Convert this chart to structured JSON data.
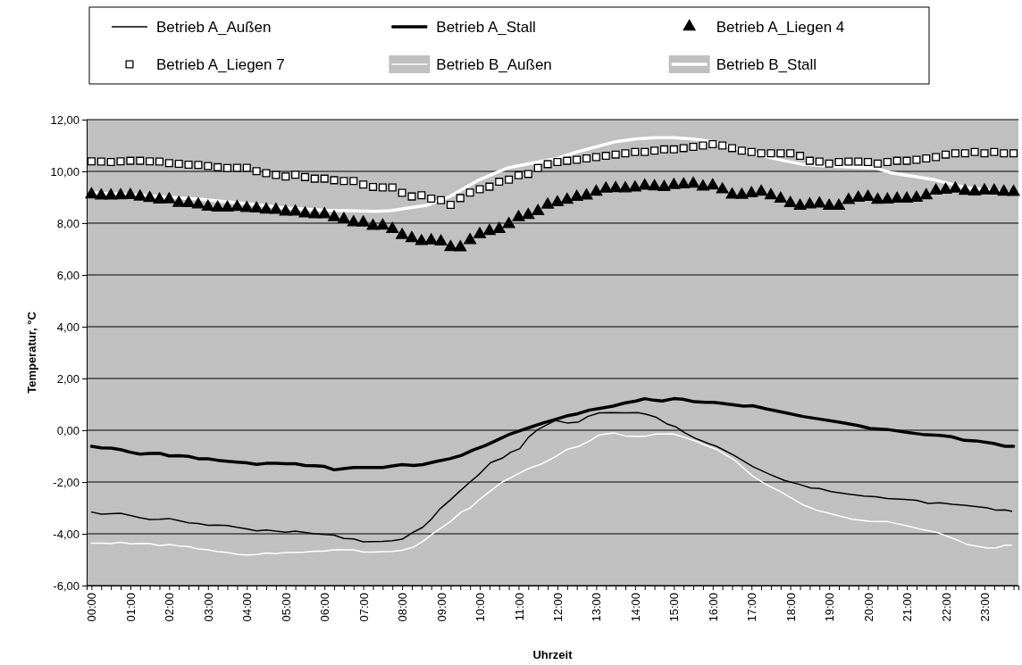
{
  "chart_data": {
    "type": "line",
    "xlabel": "Uhrzeit",
    "ylabel": "Temperatur, °C",
    "legend": "top",
    "grid": "y",
    "xlim": [
      -0.125,
      23.875
    ],
    "ylim": [
      -6,
      12
    ],
    "yticks": [
      {
        "value": -6,
        "label": "-6,00"
      },
      {
        "value": -4,
        "label": "-4,00"
      },
      {
        "value": -2,
        "label": "-2,00"
      },
      {
        "value": 0,
        "label": "0,00"
      },
      {
        "value": 2,
        "label": "2,00"
      },
      {
        "value": 4,
        "label": "4,00"
      },
      {
        "value": 6,
        "label": "6,00"
      },
      {
        "value": 8,
        "label": "8,00"
      },
      {
        "value": 10,
        "label": "10,00"
      },
      {
        "value": 12,
        "label": "12,00"
      }
    ],
    "xticks": [
      {
        "value": 0,
        "label": "00:00"
      },
      {
        "value": 0.25,
        "label": null
      },
      {
        "value": 0.5,
        "label": null
      },
      {
        "value": 0.75,
        "label": null
      },
      {
        "value": 1,
        "label": "01:00"
      },
      {
        "value": 1.25,
        "label": null
      },
      {
        "value": 1.5,
        "label": null
      },
      {
        "value": 1.75,
        "label": null
      },
      {
        "value": 2,
        "label": "02:00"
      },
      {
        "value": 2.25,
        "label": null
      },
      {
        "value": 2.5,
        "label": null
      },
      {
        "value": 2.75,
        "label": null
      },
      {
        "value": 3,
        "label": "03:00"
      },
      {
        "value": 3.25,
        "label": null
      },
      {
        "value": 3.5,
        "label": null
      },
      {
        "value": 3.75,
        "label": null
      },
      {
        "value": 4,
        "label": "04:00"
      },
      {
        "value": 4.25,
        "label": null
      },
      {
        "value": 4.5,
        "label": null
      },
      {
        "value": 4.75,
        "label": null
      },
      {
        "value": 5,
        "label": "05:00"
      },
      {
        "value": 5.25,
        "label": null
      },
      {
        "value": 5.5,
        "label": null
      },
      {
        "value": 5.75,
        "label": null
      },
      {
        "value": 6,
        "label": "06:00"
      },
      {
        "value": 6.25,
        "label": null
      },
      {
        "value": 6.5,
        "label": null
      },
      {
        "value": 6.75,
        "label": null
      },
      {
        "value": 7,
        "label": "07:00"
      },
      {
        "value": 7.25,
        "label": null
      },
      {
        "value": 7.5,
        "label": null
      },
      {
        "value": 7.75,
        "label": null
      },
      {
        "value": 8,
        "label": "08:00"
      },
      {
        "value": 8.25,
        "label": null
      },
      {
        "value": 8.5,
        "label": null
      },
      {
        "value": 8.75,
        "label": null
      },
      {
        "value": 9,
        "label": "09:00"
      },
      {
        "value": 9.25,
        "label": null
      },
      {
        "value": 9.5,
        "label": null
      },
      {
        "value": 9.75,
        "label": null
      },
      {
        "value": 10,
        "label": "10:00"
      },
      {
        "value": 10.25,
        "label": null
      },
      {
        "value": 10.5,
        "label": null
      },
      {
        "value": 10.75,
        "label": null
      },
      {
        "value": 11,
        "label": "11:00"
      },
      {
        "value": 11.25,
        "label": null
      },
      {
        "value": 11.5,
        "label": null
      },
      {
        "value": 11.75,
        "label": null
      },
      {
        "value": 12,
        "label": "12:00"
      },
      {
        "value": 12.25,
        "label": null
      },
      {
        "value": 12.5,
        "label": null
      },
      {
        "value": 12.75,
        "label": null
      },
      {
        "value": 13,
        "label": "13:00"
      },
      {
        "value": 13.25,
        "label": null
      },
      {
        "value": 13.5,
        "label": null
      },
      {
        "value": 13.75,
        "label": null
      },
      {
        "value": 14,
        "label": "14:00"
      },
      {
        "value": 14.25,
        "label": null
      },
      {
        "value": 14.5,
        "label": null
      },
      {
        "value": 14.75,
        "label": null
      },
      {
        "value": 15,
        "label": "15:00"
      },
      {
        "value": 15.25,
        "label": null
      },
      {
        "value": 15.5,
        "label": null
      },
      {
        "value": 15.75,
        "label": null
      },
      {
        "value": 16,
        "label": "16:00"
      },
      {
        "value": 16.25,
        "label": null
      },
      {
        "value": 16.5,
        "label": null
      },
      {
        "value": 16.75,
        "label": null
      },
      {
        "value": 17,
        "label": "17:00"
      },
      {
        "value": 17.25,
        "label": null
      },
      {
        "value": 17.5,
        "label": null
      },
      {
        "value": 17.75,
        "label": null
      },
      {
        "value": 18,
        "label": "18:00"
      },
      {
        "value": 18.25,
        "label": null
      },
      {
        "value": 18.5,
        "label": null
      },
      {
        "value": 18.75,
        "label": null
      },
      {
        "value": 19,
        "label": "19:00"
      },
      {
        "value": 19.25,
        "label": null
      },
      {
        "value": 19.5,
        "label": null
      },
      {
        "value": 19.75,
        "label": null
      },
      {
        "value": 20,
        "label": "20:00"
      },
      {
        "value": 20.25,
        "label": null
      },
      {
        "value": 20.5,
        "label": null
      },
      {
        "value": 20.75,
        "label": null
      },
      {
        "value": 21,
        "label": "21:00"
      },
      {
        "value": 21.25,
        "label": null
      },
      {
        "value": 21.5,
        "label": null
      },
      {
        "value": 21.75,
        "label": null
      },
      {
        "value": 22,
        "label": "22:00"
      },
      {
        "value": 22.25,
        "label": null
      },
      {
        "value": 22.5,
        "label": null
      },
      {
        "value": 22.75,
        "label": null
      },
      {
        "value": 23,
        "label": "23:00"
      },
      {
        "value": 23.25,
        "label": null
      },
      {
        "value": 23.5,
        "label": null
      },
      {
        "value": 23.75,
        "label": null
      }
    ],
    "x": [
      0,
      0.25,
      0.5,
      0.75,
      1,
      1.25,
      1.5,
      1.75,
      2,
      2.25,
      2.5,
      2.75,
      3,
      3.25,
      3.5,
      3.75,
      4,
      4.25,
      4.5,
      4.75,
      5,
      5.25,
      5.5,
      5.75,
      6,
      6.25,
      6.5,
      6.75,
      7,
      7.25,
      7.5,
      7.75,
      8,
      8.25,
      8.5,
      8.75,
      9,
      9.25,
      9.5,
      9.75,
      10,
      10.25,
      10.5,
      10.75,
      11,
      11.25,
      11.5,
      11.75,
      12,
      12.25,
      12.5,
      12.75,
      13,
      13.25,
      13.5,
      13.75,
      14,
      14.25,
      14.5,
      14.75,
      15,
      15.25,
      15.5,
      15.75,
      16,
      16.25,
      16.5,
      16.75,
      17,
      17.25,
      17.5,
      17.75,
      18,
      18.25,
      18.5,
      18.75,
      19,
      19.25,
      19.5,
      19.75,
      20,
      20.25,
      20.5,
      20.75,
      21,
      21.25,
      21.5,
      21.75,
      22,
      22.25,
      22.5,
      22.75,
      23,
      23.25,
      23.5,
      23.75
    ],
    "series": [
      {
        "name": "Betrieb A_Außen",
        "color": "#000000",
        "line_style": "solid",
        "x": [
          0,
          0.25,
          0.5,
          0.75,
          1,
          1.25,
          1.5,
          1.75,
          2,
          2.25,
          2.5,
          2.75,
          3,
          3.25,
          3.5,
          3.75,
          4,
          4.25,
          4.5,
          4.75,
          5,
          5.25,
          5.5,
          5.75,
          6,
          6.25,
          6.5,
          6.75,
          7,
          7.25,
          7.5,
          7.75,
          8,
          8.3,
          8.53,
          8.75,
          8.98,
          9.23,
          9.45,
          9.75,
          9.98,
          10.28,
          10.58,
          10.8,
          11.03,
          11.25,
          11.48,
          11.73,
          11.95,
          12.25,
          12.55,
          12.78,
          13.08,
          13.38,
          13.75,
          14.08,
          14.3,
          14.53,
          14.83,
          15.05,
          15.28,
          15.58,
          15.88,
          16.1,
          16.55,
          17.03,
          17.48,
          17.85,
          18.23,
          18.53,
          18.75,
          19.05,
          19.45,
          19.9,
          20.2,
          20.5,
          20.95,
          21.25,
          21.55,
          21.85,
          22.18,
          22.48,
          22.78,
          23.08,
          23.3,
          23.53,
          23.7
        ],
        "values": [
          -3.16,
          -3.24,
          -3.22,
          -3.21,
          -3.29,
          -3.38,
          -3.45,
          -3.44,
          -3.41,
          -3.49,
          -3.58,
          -3.6,
          -3.67,
          -3.66,
          -3.68,
          -3.75,
          -3.81,
          -3.89,
          -3.85,
          -3.9,
          -3.94,
          -3.9,
          -3.95,
          -4.0,
          -4.03,
          -4.05,
          -4.18,
          -4.2,
          -4.31,
          -4.3,
          -4.29,
          -4.27,
          -4.21,
          -3.93,
          -3.75,
          -3.44,
          -3.03,
          -2.71,
          -2.4,
          -2.0,
          -1.71,
          -1.25,
          -1.08,
          -0.85,
          -0.71,
          -0.28,
          0.01,
          0.21,
          0.38,
          0.28,
          0.32,
          0.53,
          0.67,
          0.68,
          0.67,
          0.68,
          0.61,
          0.51,
          0.24,
          0.13,
          -0.1,
          -0.33,
          -0.51,
          -0.62,
          -0.97,
          -1.4,
          -1.71,
          -1.94,
          -2.09,
          -2.23,
          -2.25,
          -2.37,
          -2.46,
          -2.54,
          -2.57,
          -2.64,
          -2.67,
          -2.71,
          -2.83,
          -2.8,
          -2.86,
          -2.9,
          -2.95,
          -3.0,
          -3.09,
          -3.08,
          -3.13
        ]
      },
      {
        "name": "Betrieb A_Stall",
        "color": "#000000",
        "line_style": "solid",
        "x": [
          0,
          0.25,
          0.5,
          0.75,
          1,
          1.25,
          1.5,
          1.75,
          2,
          2.25,
          2.5,
          2.75,
          3,
          3.25,
          3.5,
          3.75,
          4,
          4.25,
          4.5,
          4.75,
          5,
          5.25,
          5.5,
          5.75,
          6,
          6.25,
          6.5,
          6.75,
          7,
          7.25,
          7.5,
          7.75,
          8,
          8.3,
          8.53,
          8.9,
          9.23,
          9.53,
          9.83,
          10.13,
          10.43,
          10.73,
          11.03,
          11.33,
          11.63,
          11.93,
          12.23,
          12.53,
          12.83,
          13.13,
          13.43,
          13.73,
          14.03,
          14.25,
          14.48,
          14.7,
          15,
          15.23,
          15.53,
          15.83,
          16.03,
          16.4,
          16.8,
          17.03,
          17.4,
          17.8,
          18.33,
          18.85,
          19.3,
          19.75,
          20.05,
          20.5,
          20.95,
          21.4,
          21.85,
          22.15,
          22.48,
          22.78,
          23.23,
          23.53,
          23.75
        ],
        "values": [
          -0.62,
          -0.68,
          -0.69,
          -0.75,
          -0.85,
          -0.92,
          -0.9,
          -0.89,
          -0.99,
          -0.98,
          -1.01,
          -1.1,
          -1.1,
          -1.16,
          -1.2,
          -1.23,
          -1.26,
          -1.32,
          -1.28,
          -1.28,
          -1.29,
          -1.29,
          -1.36,
          -1.37,
          -1.4,
          -1.53,
          -1.48,
          -1.44,
          -1.44,
          -1.44,
          -1.44,
          -1.38,
          -1.33,
          -1.36,
          -1.33,
          -1.2,
          -1.1,
          -0.97,
          -0.76,
          -0.6,
          -0.39,
          -0.18,
          -0.02,
          0.13,
          0.28,
          0.41,
          0.55,
          0.64,
          0.78,
          0.85,
          0.93,
          1.05,
          1.13,
          1.22,
          1.16,
          1.13,
          1.22,
          1.2,
          1.1,
          1.08,
          1.08,
          1.01,
          0.93,
          0.95,
          0.82,
          0.7,
          0.53,
          0.41,
          0.3,
          0.18,
          0.07,
          0.03,
          -0.07,
          -0.16,
          -0.2,
          -0.25,
          -0.39,
          -0.41,
          -0.51,
          -0.62,
          -0.62
        ]
      },
      {
        "name": "Betrieb A_Liegen 4",
        "type": "scatter",
        "marker": "triangle",
        "color": "#000000",
        "values": [
          9.11,
          9.06,
          9.06,
          9.07,
          9.08,
          9.02,
          8.97,
          8.91,
          8.92,
          8.78,
          8.77,
          8.72,
          8.63,
          8.6,
          8.6,
          8.62,
          8.58,
          8.56,
          8.52,
          8.51,
          8.44,
          8.44,
          8.37,
          8.34,
          8.34,
          8.23,
          8.15,
          8.03,
          8.02,
          7.89,
          7.9,
          7.77,
          7.54,
          7.42,
          7.3,
          7.33,
          7.29,
          7.07,
          7.06,
          7.34,
          7.57,
          7.69,
          7.77,
          7.96,
          8.23,
          8.31,
          8.46,
          8.71,
          8.8,
          8.9,
          9.01,
          9.06,
          9.21,
          9.33,
          9.35,
          9.34,
          9.37,
          9.44,
          9.42,
          9.39,
          9.47,
          9.49,
          9.52,
          9.41,
          9.45,
          9.3,
          9.1,
          9.09,
          9.15,
          9.21,
          9.07,
          8.94,
          8.77,
          8.67,
          8.72,
          8.75,
          8.67,
          8.67,
          8.89,
          8.98,
          9.01,
          8.9,
          8.91,
          8.94,
          8.94,
          8.98,
          9.07,
          9.25,
          9.29,
          9.33,
          9.24,
          9.22,
          9.26,
          9.25,
          9.21,
          9.2
        ]
      },
      {
        "name": "Betrieb A_Liegen 7",
        "type": "scatter",
        "marker": "square",
        "color": "#ffffff",
        "values": [
          10.39,
          10.38,
          10.36,
          10.39,
          10.41,
          10.41,
          10.39,
          10.38,
          10.32,
          10.29,
          10.26,
          10.25,
          10.21,
          10.16,
          10.13,
          10.14,
          10.14,
          10.01,
          9.93,
          9.86,
          9.8,
          9.87,
          9.78,
          9.72,
          9.72,
          9.66,
          9.63,
          9.63,
          9.49,
          9.4,
          9.38,
          9.38,
          9.17,
          9.03,
          9.08,
          8.95,
          8.89,
          8.71,
          8.97,
          9.18,
          9.31,
          9.41,
          9.6,
          9.68,
          9.85,
          9.9,
          10.13,
          10.28,
          10.36,
          10.41,
          10.45,
          10.5,
          10.55,
          10.6,
          10.65,
          10.7,
          10.75,
          10.75,
          10.8,
          10.85,
          10.85,
          10.9,
          10.95,
          11.0,
          11.05,
          11.0,
          10.9,
          10.8,
          10.75,
          10.7,
          10.7,
          10.7,
          10.7,
          10.6,
          10.41,
          10.38,
          10.3,
          10.36,
          10.38,
          10.38,
          10.36,
          10.3,
          10.36,
          10.41,
          10.41,
          10.45,
          10.5,
          10.55,
          10.65,
          10.7,
          10.7,
          10.75,
          10.7,
          10.75,
          10.7,
          10.7
        ]
      },
      {
        "name": "Betrieb B_Außen",
        "color": "#ffffff",
        "line_style": "solid",
        "x": [
          0,
          0.25,
          0.5,
          0.75,
          1,
          1.25,
          1.5,
          1.75,
          2,
          2.25,
          2.5,
          2.75,
          3,
          3.25,
          3.5,
          3.75,
          4,
          4.25,
          4.5,
          4.75,
          5,
          5.25,
          5.5,
          5.75,
          6,
          6.25,
          6.5,
          6.75,
          7,
          7.25,
          7.5,
          7.75,
          8,
          8.3,
          8.53,
          8.83,
          9.23,
          9.53,
          9.75,
          9.98,
          10.28,
          10.58,
          10.88,
          11.25,
          11.58,
          11.95,
          12.25,
          12.55,
          12.85,
          13.08,
          13.45,
          13.75,
          14.08,
          14.3,
          14.53,
          14.98,
          15.28,
          15.58,
          15.88,
          16.1,
          16.55,
          17.03,
          17.33,
          17.78,
          18.3,
          18.68,
          19.13,
          19.6,
          20.05,
          20.5,
          20.95,
          21.4,
          21.78,
          22.25,
          22.55,
          23.08,
          23.3,
          23.53,
          23.7
        ],
        "values": [
          -4.36,
          -4.36,
          -4.38,
          -4.33,
          -4.39,
          -4.37,
          -4.38,
          -4.46,
          -4.41,
          -4.47,
          -4.49,
          -4.59,
          -4.62,
          -4.69,
          -4.72,
          -4.79,
          -4.82,
          -4.8,
          -4.74,
          -4.77,
          -4.72,
          -4.72,
          -4.71,
          -4.67,
          -4.67,
          -4.61,
          -4.62,
          -4.62,
          -4.71,
          -4.71,
          -4.69,
          -4.68,
          -4.64,
          -4.51,
          -4.3,
          -3.95,
          -3.55,
          -3.15,
          -3.01,
          -2.69,
          -2.34,
          -2.0,
          -1.77,
          -1.48,
          -1.31,
          -1.02,
          -0.74,
          -0.62,
          -0.39,
          -0.18,
          -0.1,
          -0.22,
          -0.24,
          -0.22,
          -0.15,
          -0.14,
          -0.28,
          -0.43,
          -0.62,
          -0.74,
          -1.14,
          -1.77,
          -2.06,
          -2.4,
          -2.86,
          -3.09,
          -3.26,
          -3.44,
          -3.52,
          -3.53,
          -3.67,
          -3.84,
          -3.95,
          -4.21,
          -4.41,
          -4.55,
          -4.54,
          -4.44,
          -4.44
        ]
      },
      {
        "name": "Betrieb B_Stall",
        "color": "#ffffff",
        "line_style": "solid",
        "x": [
          0,
          1,
          2,
          2.75,
          4,
          5,
          6,
          7.33,
          7.7,
          8.63,
          9.23,
          9.98,
          10.73,
          11.5,
          12,
          12.5,
          13,
          13.5,
          14,
          14.5,
          15,
          15.5,
          16,
          16.5,
          17,
          17.85,
          18.3,
          19,
          20.2,
          20.58,
          21.73,
          22.48,
          23.23,
          23.75
        ],
        "values": [
          9.17,
          9.1,
          9.0,
          8.93,
          8.75,
          8.59,
          8.5,
          8.46,
          8.48,
          8.69,
          9.03,
          9.67,
          10.14,
          10.36,
          10.5,
          10.75,
          10.95,
          11.15,
          11.25,
          11.3,
          11.3,
          11.25,
          11.15,
          10.95,
          10.7,
          10.41,
          10.28,
          10.2,
          10.13,
          9.95,
          9.67,
          9.38,
          9.26,
          9.15
        ]
      }
    ]
  }
}
